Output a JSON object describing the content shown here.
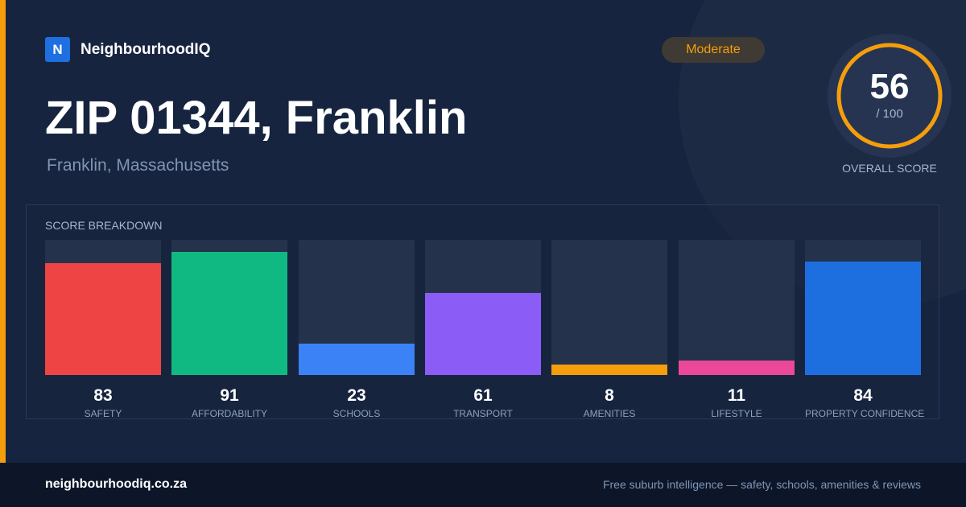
{
  "brand": {
    "logo_letter": "N",
    "name": "NeighbourhoodIQ"
  },
  "badge": {
    "label": "Moderate",
    "color": "#f59e0b"
  },
  "title": "ZIP 01344, Franklin",
  "subtitle": "Franklin, Massachusetts",
  "overall": {
    "score": "56",
    "max_label": "/ 100",
    "label": "OVERALL SCORE",
    "value": 56,
    "max": 100,
    "color": "#f59e0b"
  },
  "breakdown": {
    "label": "SCORE BREAKDOWN",
    "categories": [
      {
        "label": "SAFETY",
        "score": "83",
        "value": 83,
        "color": "#ef4444"
      },
      {
        "label": "AFFORDABILITY",
        "score": "91",
        "value": 91,
        "color": "#10b981"
      },
      {
        "label": "SCHOOLS",
        "score": "23",
        "value": 23,
        "color": "#3b82f6"
      },
      {
        "label": "TRANSPORT",
        "score": "61",
        "value": 61,
        "color": "#8b5cf6"
      },
      {
        "label": "AMENITIES",
        "score": "8",
        "value": 8,
        "color": "#f59e0b"
      },
      {
        "label": "LIFESTYLE",
        "score": "11",
        "value": 11,
        "color": "#ec4899"
      },
      {
        "label": "PROPERTY CONFIDENCE",
        "score": "84",
        "value": 84,
        "color": "#1d6fe0"
      }
    ]
  },
  "footer": {
    "url": "neighbourhoodiq.co.za",
    "tagline": "Free suburb intelligence — safety, schools, amenities & reviews"
  }
}
